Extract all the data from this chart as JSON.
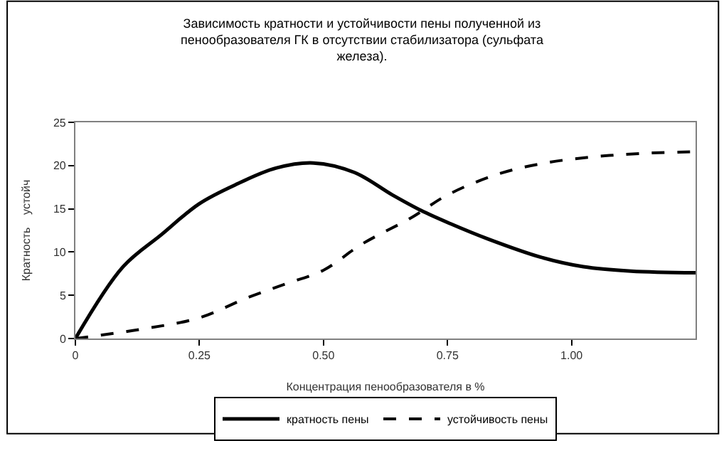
{
  "chart_data": {
    "type": "line",
    "title": "Зависимость кратности и устойчивости пены полученной из пенообразователя ГК в отсутствии стабилизатора (сульфата железа).",
    "xlabel": "Концентрация пенообразователя в %",
    "ylabel": "Кратность    устойч",
    "xlim": [
      0,
      1.25
    ],
    "xticks": [
      0,
      0.25,
      {
        "value": 0.5,
        "label": "0.50"
      },
      0.75,
      {
        "value": 1.0,
        "label": "1.00"
      }
    ],
    "ylim": [
      0,
      25
    ],
    "yticks": [
      0,
      5,
      10,
      15,
      20,
      25
    ],
    "legend": "bottom",
    "marker": "none",
    "series": [
      {
        "name": "кратность пены",
        "color": "#000000",
        "line_style": "solid",
        "x": [
          0,
          0.096,
          0.173,
          0.25,
          0.327,
          0.404,
          0.48,
          0.5625,
          0.639,
          0.697,
          0.755,
          0.832,
          0.938,
          1.024,
          1.12,
          1.25
        ],
        "values": [
          0,
          8.3,
          12,
          15.6,
          17.9,
          19.7,
          20.3,
          19.2,
          16.6,
          14.8,
          13.3,
          11.5,
          9.4,
          8.3,
          7.8,
          7.6
        ]
      },
      {
        "name": "устойчивость пены",
        "color": "#000000",
        "line_style": "dashed",
        "x": [
          0,
          0.135,
          0.25,
          0.346,
          0.423,
          0.5,
          0.577,
          0.678,
          0.75,
          0.851,
          0.947,
          1.043,
          1.139,
          1.245
        ],
        "values": [
          0,
          1.1,
          2.4,
          4.7,
          6.3,
          7.9,
          10.9,
          14.0,
          16.6,
          19.0,
          20.3,
          21.0,
          21.4,
          21.6
        ]
      }
    ]
  }
}
